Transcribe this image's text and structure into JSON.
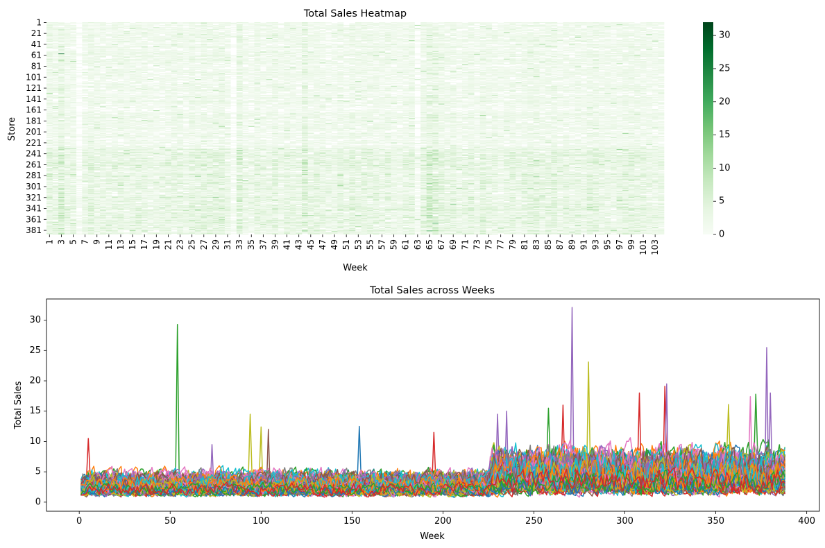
{
  "chart_data": [
    {
      "type": "heatmap",
      "title": "Total Sales Heatmap",
      "xlabel": "Week",
      "ylabel": "Store",
      "x_tick_labels": [
        "1",
        "3",
        "5",
        "7",
        "9",
        "11",
        "13",
        "15",
        "17",
        "19",
        "21",
        "23",
        "25",
        "27",
        "29",
        "31",
        "33",
        "35",
        "37",
        "39",
        "41",
        "43",
        "45",
        "47",
        "49",
        "51",
        "53",
        "55",
        "57",
        "59",
        "61",
        "63",
        "65",
        "67",
        "69",
        "71",
        "73",
        "75",
        "77",
        "79",
        "81",
        "83",
        "85",
        "87",
        "89",
        "91",
        "93",
        "95",
        "97",
        "99",
        "101",
        "103"
      ],
      "y_tick_labels": [
        "1",
        "21",
        "41",
        "61",
        "81",
        "101",
        "121",
        "141",
        "161",
        "181",
        "201",
        "221",
        "241",
        "261",
        "281",
        "301",
        "321",
        "341",
        "361",
        "381"
      ],
      "n_weeks": 104,
      "n_stores": 388,
      "colorbar": {
        "min": 0,
        "max": 32,
        "ticks": [
          0,
          5,
          10,
          15,
          20,
          25,
          30
        ],
        "colormap": "Greens"
      },
      "value_summary": {
        "typical_range": [
          0,
          6
        ],
        "peak_cells": [
          {
            "store": 58,
            "week": 3,
            "value": 29
          },
          {
            "store": 382,
            "week": 65,
            "value": 20
          }
        ],
        "darker_store_bands": [
          "230-388"
        ],
        "darker_week_columns": [
          3,
          33,
          44,
          65,
          66
        ]
      }
    },
    {
      "type": "line",
      "title": "Total Sales across Weeks",
      "xlabel": "Week",
      "ylabel": "Total Sales",
      "xlim": [
        -18,
        407
      ],
      "ylim": [
        -1.5,
        33.5
      ],
      "x_ticks": [
        0,
        50,
        100,
        150,
        200,
        250,
        300,
        350,
        400
      ],
      "y_ticks": [
        0,
        5,
        10,
        15,
        20,
        25,
        30
      ],
      "n_series": 104,
      "x_range": [
        1,
        388
      ],
      "series_colors": [
        "#1f77b4",
        "#ff7f0e",
        "#2ca02c",
        "#d62728",
        "#9467bd",
        "#8c564b",
        "#e377c2",
        "#7f7f7f",
        "#bcbd22",
        "#17becf"
      ],
      "peaks": [
        {
          "x": 54,
          "y": 29.3,
          "color": "#2ca02c"
        },
        {
          "x": 271,
          "y": 32.1,
          "color": "#9467bd"
        },
        {
          "x": 280,
          "y": 23.1,
          "color": "#bcbd22"
        },
        {
          "x": 378,
          "y": 25.5,
          "color": "#9467bd"
        },
        {
          "x": 323,
          "y": 19.5,
          "color": "#9467bd"
        },
        {
          "x": 322,
          "y": 19.1,
          "color": "#d62728"
        },
        {
          "x": 308,
          "y": 18.0,
          "color": "#d62728"
        },
        {
          "x": 380,
          "y": 18.0,
          "color": "#9467bd"
        },
        {
          "x": 372,
          "y": 17.8,
          "color": "#2ca02c"
        },
        {
          "x": 369,
          "y": 17.4,
          "color": "#e377c2"
        },
        {
          "x": 357,
          "y": 16.1,
          "color": "#bcbd22"
        },
        {
          "x": 266,
          "y": 16.0,
          "color": "#d62728"
        },
        {
          "x": 258,
          "y": 15.5,
          "color": "#2ca02c"
        },
        {
          "x": 235,
          "y": 15.0,
          "color": "#9467bd"
        },
        {
          "x": 94,
          "y": 14.5,
          "color": "#bcbd22"
        },
        {
          "x": 230,
          "y": 14.5,
          "color": "#9467bd"
        },
        {
          "x": 154,
          "y": 12.5,
          "color": "#1f77b4"
        },
        {
          "x": 100,
          "y": 12.4,
          "color": "#bcbd22"
        },
        {
          "x": 104,
          "y": 12.0,
          "color": "#8c564b"
        },
        {
          "x": 195,
          "y": 11.5,
          "color": "#d62728"
        },
        {
          "x": 5,
          "y": 10.5,
          "color": "#d62728"
        },
        {
          "x": 73,
          "y": 9.5,
          "color": "#9467bd"
        }
      ],
      "baseline_by_range": [
        {
          "x_range": [
            1,
            225
          ],
          "typical_max": 5.5
        },
        {
          "x_range": [
            225,
            388
          ],
          "typical_max": 10
        }
      ]
    }
  ]
}
